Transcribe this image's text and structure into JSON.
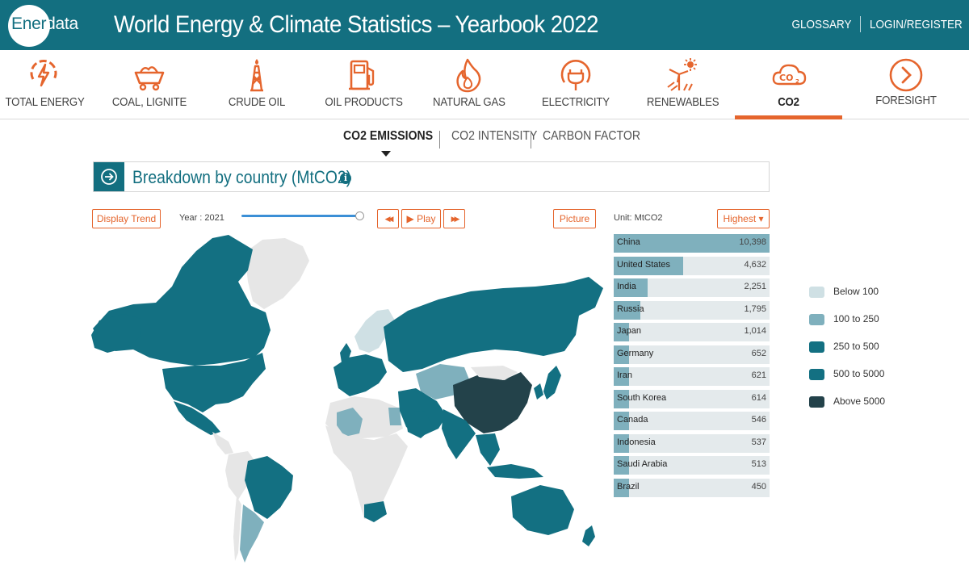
{
  "header": {
    "logo_part1": "Ener",
    "logo_part2": "data",
    "title": "World Energy & Climate Statistics – Yearbook 2022",
    "links": [
      "GLOSSARY",
      "LOGIN/REGISTER"
    ]
  },
  "categories": [
    {
      "label": "TOTAL ENERGY",
      "icon": "energy-icon"
    },
    {
      "label": "COAL, LIGNITE",
      "icon": "coal-cart-icon"
    },
    {
      "label": "CRUDE OIL",
      "icon": "oil-derrick-icon"
    },
    {
      "label": "OIL PRODUCTS",
      "icon": "fuel-pump-icon"
    },
    {
      "label": "NATURAL GAS",
      "icon": "flame-icon"
    },
    {
      "label": "ELECTRICITY",
      "icon": "plug-icon"
    },
    {
      "label": "RENEWABLES",
      "icon": "wind-sun-icon"
    },
    {
      "label": "CO2",
      "icon": "co2-cloud-icon",
      "active": true
    },
    {
      "label": "FORESIGHT",
      "icon": "chevron-circle-icon"
    }
  ],
  "subtabs": [
    "CO2 EMISSIONS",
    "CO2 INTENSITY",
    "CARBON FACTOR"
  ],
  "panel": {
    "title": "Breakdown by country (MtCO2)",
    "info": "i"
  },
  "controls": {
    "display_trend": "Display Trend",
    "year_label": "Year : 2021",
    "prev": "◀◀",
    "play": "▶ Play",
    "next": "▶▶",
    "picture": "Picture",
    "unit": "Unit: MtCO2",
    "sort": "Highest ▾",
    "slider_value": 1.0
  },
  "ranking": [
    {
      "country": "China",
      "value": "10,398",
      "num": 10398
    },
    {
      "country": "United States",
      "value": "4,632",
      "num": 4632
    },
    {
      "country": "India",
      "value": "2,251",
      "num": 2251
    },
    {
      "country": "Russia",
      "value": "1,795",
      "num": 1795
    },
    {
      "country": "Japan",
      "value": "1,014",
      "num": 1014
    },
    {
      "country": "Germany",
      "value": "652",
      "num": 652
    },
    {
      "country": "Iran",
      "value": "621",
      "num": 621
    },
    {
      "country": "South Korea",
      "value": "614",
      "num": 614
    },
    {
      "country": "Canada",
      "value": "546",
      "num": 546
    },
    {
      "country": "Indonesia",
      "value": "537",
      "num": 537
    },
    {
      "country": "Saudi Arabia",
      "value": "513",
      "num": 513
    },
    {
      "country": "Brazil",
      "value": "450",
      "num": 450
    }
  ],
  "legend": [
    {
      "label": "Below 100",
      "color": "#cfe0e4"
    },
    {
      "label": "100 to 250",
      "color": "#7fb0bd"
    },
    {
      "label": "250 to 500",
      "color": "#137082"
    },
    {
      "label": "500 to 5000",
      "color": "#137082"
    },
    {
      "label": "Above 5000",
      "color": "#23424a"
    }
  ],
  "colors": {
    "brand": "#136f80",
    "accent": "#e5652d",
    "nodata": "#e6e6e6"
  }
}
